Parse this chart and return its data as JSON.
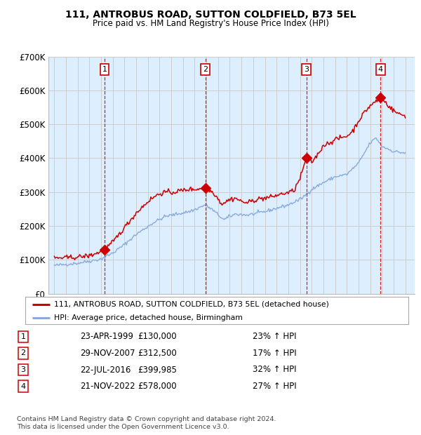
{
  "title": "111, ANTROBUS ROAD, SUTTON COLDFIELD, B73 5EL",
  "subtitle": "Price paid vs. HM Land Registry's House Price Index (HPI)",
  "bg_color": "#ddeeff",
  "red_line_color": "#cc0000",
  "blue_line_color": "#88aadd",
  "grid_color": "#cccccc",
  "vline_color": "#cc0000",
  "marker_color": "#cc0000",
  "purchases": [
    {
      "date_num": 1999.31,
      "price": 130000,
      "label": "1"
    },
    {
      "date_num": 2007.91,
      "price": 312500,
      "label": "2"
    },
    {
      "date_num": 2016.55,
      "price": 399985,
      "label": "3"
    },
    {
      "date_num": 2022.89,
      "price": 578000,
      "label": "4"
    }
  ],
  "legend_entries": [
    "111, ANTROBUS ROAD, SUTTON COLDFIELD, B73 5EL (detached house)",
    "HPI: Average price, detached house, Birmingham"
  ],
  "table_rows": [
    {
      "num": "1",
      "date": "23-APR-1999",
      "price": "£130,000",
      "change": "23% ↑ HPI"
    },
    {
      "num": "2",
      "date": "29-NOV-2007",
      "price": "£312,500",
      "change": "17% ↑ HPI"
    },
    {
      "num": "3",
      "date": "22-JUL-2016",
      "price": "£399,985",
      "change": "32% ↑ HPI"
    },
    {
      "num": "4",
      "date": "21-NOV-2022",
      "price": "£578,000",
      "change": "27% ↑ HPI"
    }
  ],
  "footnote": "Contains HM Land Registry data © Crown copyright and database right 2024.\nThis data is licensed under the Open Government Licence v3.0.",
  "ylim": [
    0,
    700000
  ],
  "yticks": [
    0,
    100000,
    200000,
    300000,
    400000,
    500000,
    600000,
    700000
  ],
  "ytick_labels": [
    "£0",
    "£100K",
    "£200K",
    "£300K",
    "£400K",
    "£500K",
    "£600K",
    "£700K"
  ],
  "xlim_start": 1994.5,
  "xlim_end": 2025.8,
  "hpi_anchors": {
    "1995.0": 83000,
    "1997.0": 90000,
    "1999.0": 102000,
    "1999.3": 108000,
    "2000.0": 120000,
    "2001.0": 145000,
    "2002.0": 175000,
    "2003.5": 210000,
    "2004.5": 228000,
    "2005.5": 235000,
    "2006.5": 242000,
    "2007.0": 248000,
    "2007.9": 262000,
    "2008.5": 248000,
    "2009.5": 218000,
    "2010.0": 228000,
    "2010.5": 235000,
    "2011.5": 232000,
    "2012.0": 235000,
    "2013.0": 242000,
    "2014.0": 252000,
    "2015.0": 262000,
    "2016.0": 278000,
    "2016.5": 292000,
    "2017.0": 308000,
    "2018.0": 328000,
    "2019.0": 345000,
    "2020.0": 352000,
    "2021.0": 385000,
    "2022.0": 445000,
    "2022.5": 460000,
    "2023.0": 435000,
    "2024.0": 420000,
    "2025.0": 415000
  },
  "red_anchors": {
    "1995.0": 105000,
    "1996.0": 106000,
    "1997.0": 108000,
    "1998.0": 112000,
    "1999.0": 124000,
    "1999.31": 130000,
    "1999.5": 136000,
    "2000.0": 152000,
    "2001.0": 195000,
    "2002.0": 238000,
    "2003.0": 272000,
    "2003.5": 285000,
    "2004.0": 295000,
    "2004.5": 300000,
    "2005.0": 298000,
    "2005.5": 302000,
    "2006.0": 305000,
    "2006.5": 308000,
    "2007.0": 308000,
    "2007.5": 310000,
    "2007.91": 312500,
    "2008.3": 305000,
    "2008.7": 295000,
    "2009.3": 265000,
    "2009.7": 272000,
    "2010.0": 278000,
    "2010.5": 282000,
    "2011.0": 272000,
    "2011.5": 268000,
    "2012.0": 275000,
    "2012.5": 280000,
    "2013.0": 282000,
    "2013.5": 285000,
    "2014.0": 290000,
    "2014.5": 295000,
    "2015.0": 298000,
    "2015.5": 305000,
    "2016.0": 340000,
    "2016.55": 399985,
    "2017.0": 388000,
    "2017.5": 410000,
    "2018.0": 438000,
    "2018.5": 445000,
    "2019.0": 455000,
    "2019.5": 460000,
    "2020.0": 465000,
    "2020.5": 480000,
    "2021.0": 510000,
    "2021.5": 535000,
    "2022.0": 555000,
    "2022.5": 568000,
    "2022.89": 578000,
    "2023.0": 575000,
    "2023.3": 565000,
    "2023.7": 550000,
    "2024.0": 540000,
    "2024.5": 530000,
    "2025.0": 525000
  }
}
